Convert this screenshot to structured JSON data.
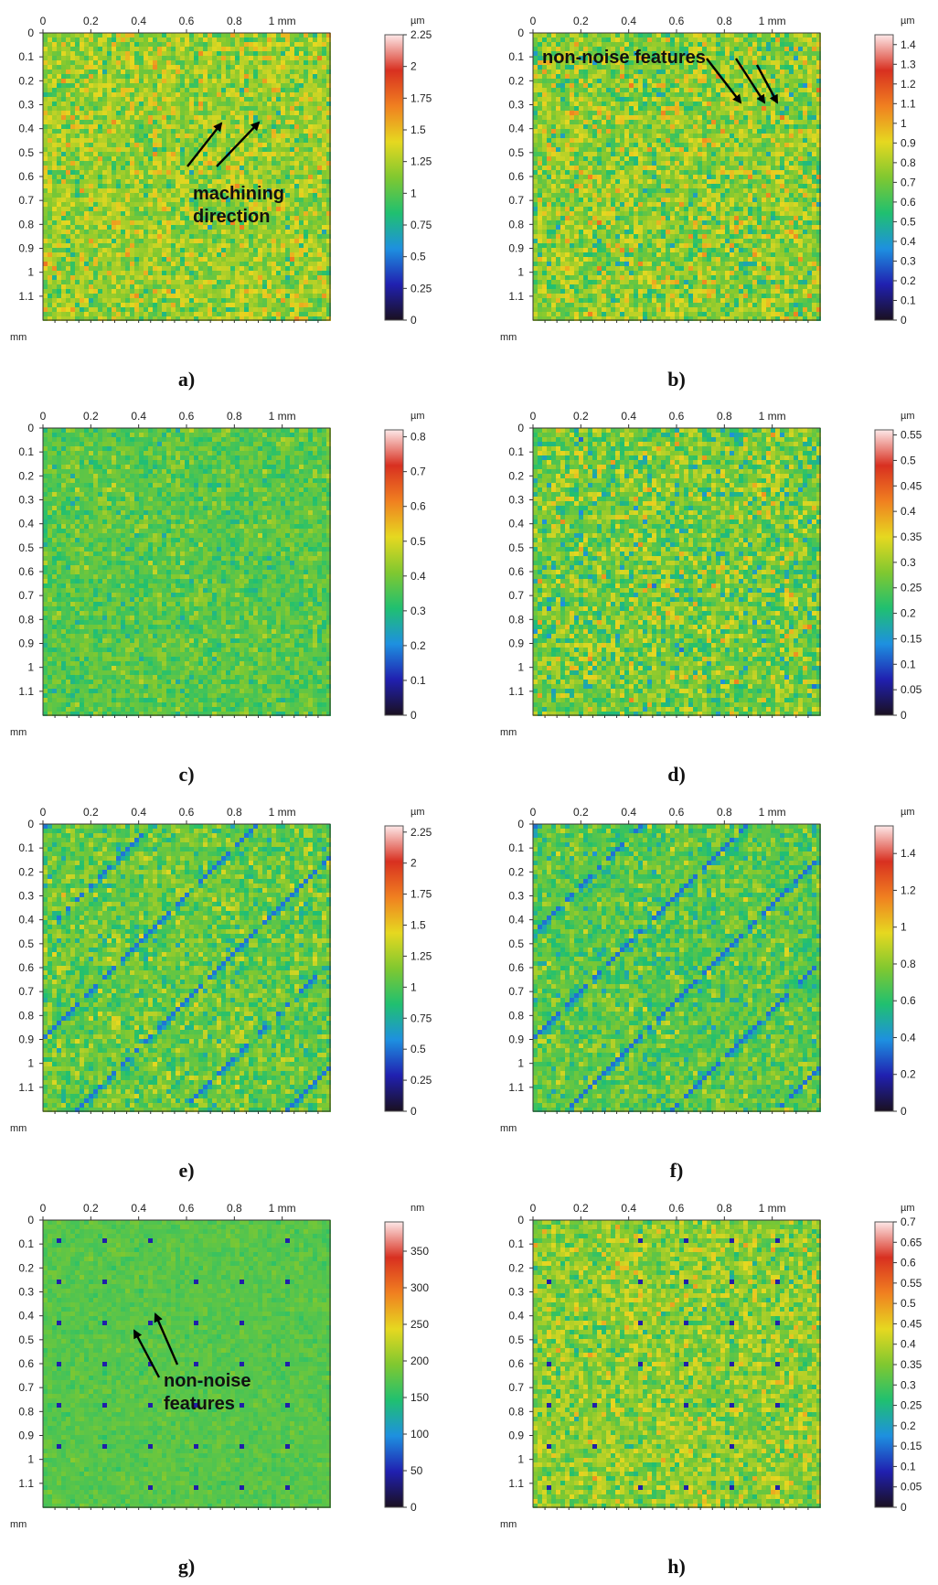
{
  "chart_data": [
    {
      "panel": "a)",
      "type": "heatmap",
      "x_ticks": [
        "0",
        "0.2",
        "0.4",
        "0.6",
        "0.8",
        "1 mm"
      ],
      "y_ticks": [
        "0",
        "0.1",
        "0.2",
        "0.3",
        "0.4",
        "0.5",
        "0.6",
        "0.7",
        "0.8",
        "0.9",
        "1",
        "1.1"
      ],
      "axis_unit": "mm",
      "xlim": [
        0,
        1.2
      ],
      "ylim": [
        0,
        1.2
      ],
      "colorbar_unit": "µm",
      "colorbar_range": [
        0,
        2.25
      ],
      "colorbar_ticks": [
        "0",
        "0.25",
        "0.5",
        "0.75",
        "1",
        "1.25",
        "1.5",
        "1.75",
        "2",
        "2.25"
      ],
      "pattern": "random",
      "mean": 1.2,
      "spread": 0.25,
      "annotations": [
        "machining",
        "direction"
      ]
    },
    {
      "panel": "b)",
      "type": "heatmap",
      "x_ticks": [
        "0",
        "0.2",
        "0.4",
        "0.6",
        "0.8",
        "1 mm"
      ],
      "y_ticks": [
        "0",
        "0.1",
        "0.2",
        "0.3",
        "0.4",
        "0.5",
        "0.6",
        "0.7",
        "0.8",
        "0.9",
        "1",
        "1.1"
      ],
      "axis_unit": "mm",
      "xlim": [
        0,
        1.2
      ],
      "ylim": [
        0,
        1.2
      ],
      "colorbar_unit": "µm",
      "colorbar_range": [
        0,
        1.45
      ],
      "colorbar_ticks": [
        "0",
        "0.1",
        "0.2",
        "0.3",
        "0.4",
        "0.5",
        "0.6",
        "0.7",
        "0.8",
        "0.9",
        "1",
        "1.1",
        "1.2",
        "1.3",
        "1.4"
      ],
      "pattern": "random",
      "mean": 0.75,
      "spread": 0.18,
      "annotations": [
        "non-noise features"
      ]
    },
    {
      "panel": "c)",
      "type": "heatmap",
      "x_ticks": [
        "0",
        "0.2",
        "0.4",
        "0.6",
        "0.8",
        "1 mm"
      ],
      "y_ticks": [
        "0",
        "0.1",
        "0.2",
        "0.3",
        "0.4",
        "0.5",
        "0.6",
        "0.7",
        "0.8",
        "0.9",
        "1",
        "1.1"
      ],
      "axis_unit": "mm",
      "xlim": [
        0,
        1.2
      ],
      "ylim": [
        0,
        1.2
      ],
      "colorbar_unit": "µm",
      "colorbar_range": [
        0,
        0.82
      ],
      "colorbar_ticks": [
        "0",
        "0.1",
        "0.2",
        "0.3",
        "0.4",
        "0.5",
        "0.6",
        "0.7",
        "0.8"
      ],
      "pattern": "random",
      "mean": 0.37,
      "spread": 0.06,
      "annotations": []
    },
    {
      "panel": "d)",
      "type": "heatmap",
      "x_ticks": [
        "0",
        "0.2",
        "0.4",
        "0.6",
        "0.8",
        "1 mm"
      ],
      "y_ticks": [
        "0",
        "0.1",
        "0.2",
        "0.3",
        "0.4",
        "0.5",
        "0.6",
        "0.7",
        "0.8",
        "0.9",
        "1",
        "1.1"
      ],
      "axis_unit": "mm",
      "xlim": [
        0,
        1.2
      ],
      "ylim": [
        0,
        1.2
      ],
      "colorbar_unit": "µm",
      "colorbar_range": [
        0,
        0.56
      ],
      "colorbar_ticks": [
        "0",
        "0.05",
        "0.1",
        "0.15",
        "0.2",
        "0.25",
        "0.3",
        "0.35",
        "0.4",
        "0.45",
        "0.5",
        "0.55"
      ],
      "pattern": "random",
      "mean": 0.27,
      "spread": 0.07,
      "annotations": []
    },
    {
      "panel": "e)",
      "type": "heatmap",
      "x_ticks": [
        "0",
        "0.2",
        "0.4",
        "0.6",
        "0.8",
        "1 mm"
      ],
      "y_ticks": [
        "0",
        "0.1",
        "0.2",
        "0.3",
        "0.4",
        "0.5",
        "0.6",
        "0.7",
        "0.8",
        "0.9",
        "1",
        "1.1"
      ],
      "axis_unit": "mm",
      "xlim": [
        0,
        1.2
      ],
      "ylim": [
        0,
        1.2
      ],
      "colorbar_unit": "µm",
      "colorbar_range": [
        0,
        2.3
      ],
      "colorbar_ticks": [
        "0",
        "0.25",
        "0.5",
        "0.75",
        "1",
        "1.25",
        "1.5",
        "1.75",
        "2",
        "2.25"
      ],
      "pattern": "diagonal-streaks",
      "mean": 1.08,
      "spread": 0.22,
      "annotations": []
    },
    {
      "panel": "f)",
      "type": "heatmap",
      "x_ticks": [
        "0",
        "0.2",
        "0.4",
        "0.6",
        "0.8",
        "1 mm"
      ],
      "y_ticks": [
        "0",
        "0.1",
        "0.2",
        "0.3",
        "0.4",
        "0.5",
        "0.6",
        "0.7",
        "0.8",
        "0.9",
        "1",
        "1.1"
      ],
      "axis_unit": "mm",
      "xlim": [
        0,
        1.2
      ],
      "ylim": [
        0,
        1.2
      ],
      "colorbar_unit": "µm",
      "colorbar_range": [
        0,
        1.55
      ],
      "colorbar_ticks": [
        "0",
        "0.2",
        "0.4",
        "0.6",
        "0.8",
        "1",
        "1.2",
        "1.4"
      ],
      "pattern": "diagonal-streaks",
      "mean": 0.7,
      "spread": 0.14,
      "annotations": []
    },
    {
      "panel": "g)",
      "type": "heatmap",
      "x_ticks": [
        "0",
        "0.2",
        "0.4",
        "0.6",
        "0.8",
        "1 mm"
      ],
      "y_ticks": [
        "0",
        "0.1",
        "0.2",
        "0.3",
        "0.4",
        "0.5",
        "0.6",
        "0.7",
        "0.8",
        "0.9",
        "1",
        "1.1"
      ],
      "axis_unit": "mm",
      "xlim": [
        0,
        1.2
      ],
      "ylim": [
        0,
        1.2
      ],
      "colorbar_unit": "nm",
      "colorbar_range": [
        0,
        390
      ],
      "colorbar_ticks": [
        "0",
        "50",
        "100",
        "150",
        "200",
        "250",
        "300",
        "350"
      ],
      "pattern": "dot-grid",
      "mean": 175,
      "spread": 12,
      "annotations": [
        "non-noise",
        "features"
      ]
    },
    {
      "panel": "h)",
      "type": "heatmap",
      "x_ticks": [
        "0",
        "0.2",
        "0.4",
        "0.6",
        "0.8",
        "1 mm"
      ],
      "y_ticks": [
        "0",
        "0.1",
        "0.2",
        "0.3",
        "0.4",
        "0.5",
        "0.6",
        "0.7",
        "0.8",
        "0.9",
        "1",
        "1.1"
      ],
      "axis_unit": "mm",
      "xlim": [
        0,
        1.2
      ],
      "ylim": [
        0,
        1.2
      ],
      "colorbar_unit": "µm",
      "colorbar_range": [
        0,
        0.7
      ],
      "colorbar_ticks": [
        "0",
        "0.05",
        "0.1",
        "0.15",
        "0.2",
        "0.25",
        "0.3",
        "0.35",
        "0.4",
        "0.45",
        "0.5",
        "0.55",
        "0.6",
        "0.65",
        "0.7"
      ],
      "pattern": "dot-grid",
      "mean": 0.36,
      "spread": 0.07,
      "annotations": []
    }
  ],
  "colormap": [
    "#1a1020",
    "#2020b0",
    "#1e90e0",
    "#20c070",
    "#80c830",
    "#e6d820",
    "#f08020",
    "#d83020",
    "#fde8e8"
  ]
}
